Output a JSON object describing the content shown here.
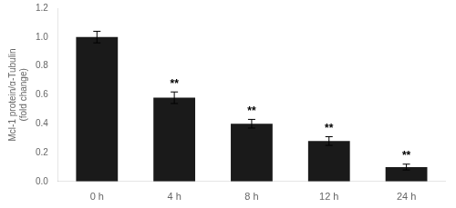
{
  "chart_data": {
    "type": "bar",
    "categories": [
      "0 h",
      "4 h",
      "8 h",
      "12 h",
      "24 h"
    ],
    "values": [
      1.0,
      0.58,
      0.4,
      0.28,
      0.1
    ],
    "errors": [
      0.04,
      0.04,
      0.03,
      0.03,
      0.02
    ],
    "color": "#1a1a1a",
    "ylabel": "Mcl-1 protein/α-Tubulin\n(fold change)",
    "ylim": [
      0,
      1.2
    ],
    "yticks": [
      {
        "value": 0,
        "label": "0.0"
      },
      0.2,
      0.4,
      0.6,
      0.8,
      {
        "value": 1,
        "label": "1.0"
      },
      1.2
    ],
    "annotations": [
      {
        "x": "4 h",
        "text": "**"
      },
      {
        "x": "8 h",
        "text": "**"
      },
      {
        "x": "12 h",
        "text": "**"
      },
      {
        "x": "24 h",
        "text": "**"
      }
    ],
    "grid": false
  }
}
